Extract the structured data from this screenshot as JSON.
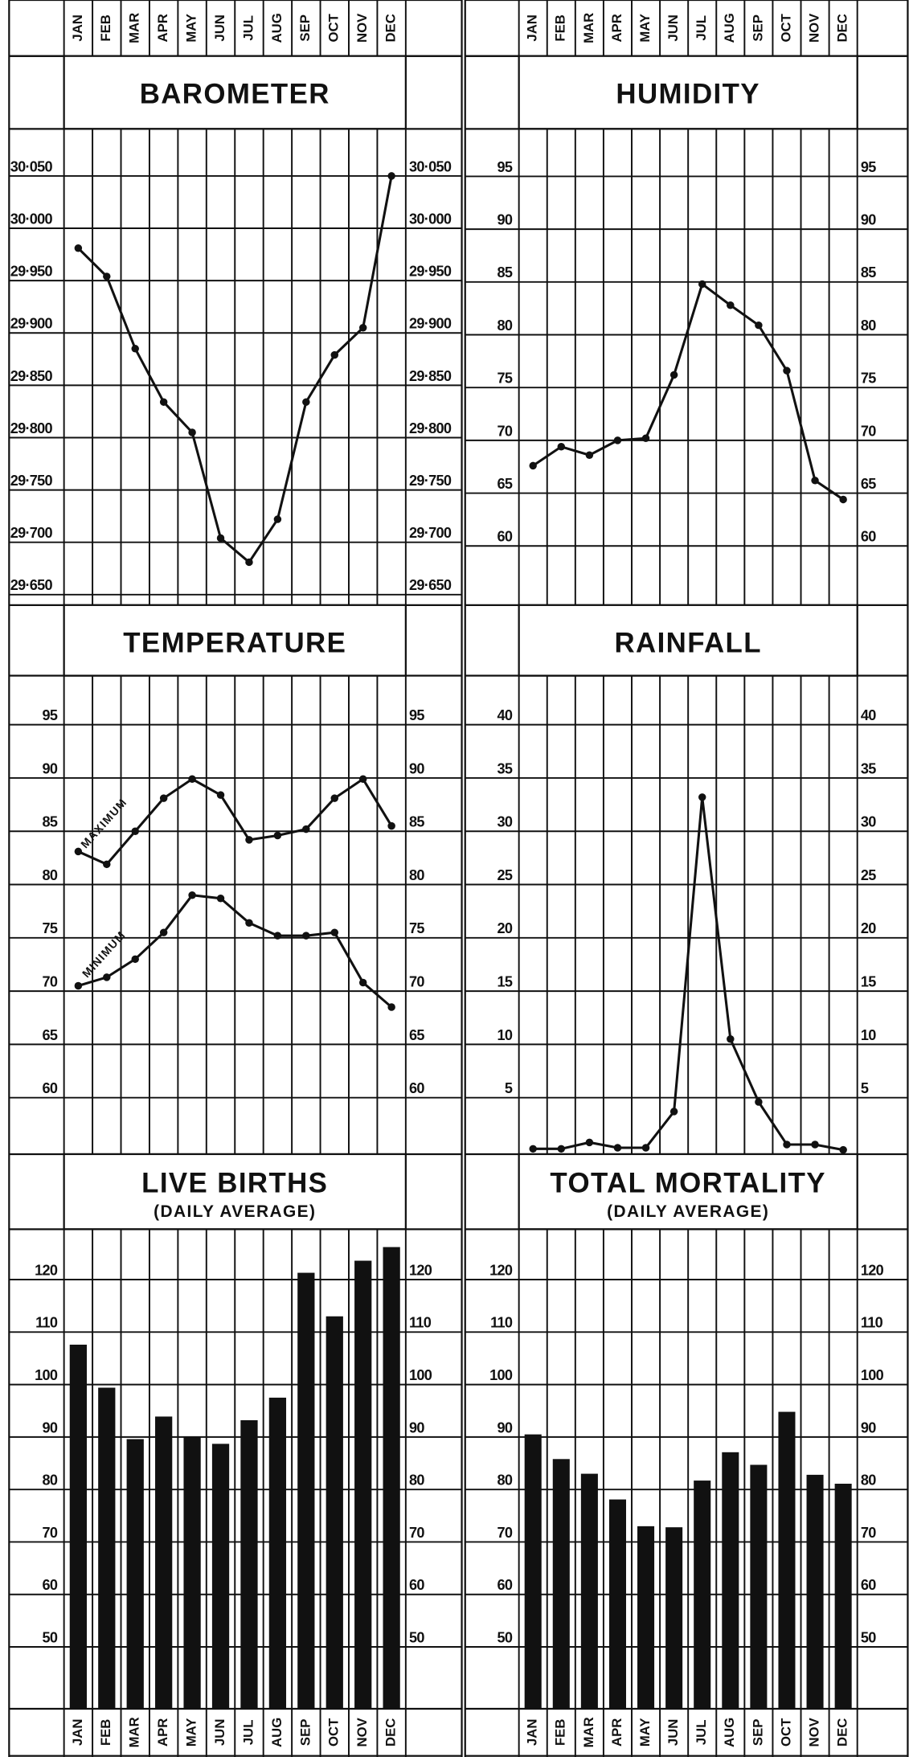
{
  "chart_data": [
    {
      "type": "line",
      "title": "BAROMETER",
      "categories": [
        "JAN",
        "FEB",
        "MAR",
        "APR",
        "MAY",
        "JUN",
        "JUL",
        "AUG",
        "SEP",
        "OCT",
        "NOV",
        "DEC"
      ],
      "values": [
        29.981,
        29.954,
        29.885,
        29.834,
        29.805,
        29.704,
        29.681,
        29.722,
        29.834,
        29.879,
        29.905,
        30.05
      ],
      "color": "#111",
      "ylim": [
        29.64,
        30.095
      ],
      "yticks": [
        {
          "value": 29.65,
          "label": "29·650"
        },
        {
          "value": 29.7,
          "label": "29·700"
        },
        {
          "value": 29.75,
          "label": "29·750"
        },
        {
          "value": 29.8,
          "label": "29·800"
        },
        {
          "value": 29.85,
          "label": "29·850"
        },
        {
          "value": 29.9,
          "label": "29·900"
        },
        {
          "value": 29.95,
          "label": "29·950"
        },
        {
          "value": 30.0,
          "label": "30·000"
        },
        {
          "value": 30.05,
          "label": "30·050"
        }
      ],
      "grid": true
    },
    {
      "type": "line",
      "title": "HUMIDITY",
      "categories": [
        "JAN",
        "FEB",
        "MAR",
        "APR",
        "MAY",
        "JUN",
        "JUL",
        "AUG",
        "SEP",
        "OCT",
        "NOV",
        "DEC"
      ],
      "values": [
        67.6,
        69.4,
        68.6,
        70.0,
        70.2,
        76.2,
        84.8,
        82.8,
        80.9,
        76.6,
        66.2,
        64.4
      ],
      "color": "#111",
      "ylim": [
        54.4,
        99.5
      ],
      "yticks": [
        60,
        65,
        70,
        75,
        80,
        85,
        90,
        95
      ],
      "grid": true
    },
    {
      "type": "line",
      "title": "TEMPERATURE",
      "series": [
        {
          "name": "MAXIMUM",
          "color": "#111",
          "values": [
            83.1,
            81.9,
            85.0,
            88.1,
            89.9,
            88.4,
            84.2,
            84.6,
            85.2,
            88.1,
            89.9,
            85.5
          ]
        },
        {
          "name": "MINIMUM",
          "color": "#111",
          "values": [
            70.5,
            71.3,
            73.0,
            75.5,
            79.0,
            78.7,
            76.4,
            75.2,
            75.2,
            75.5,
            70.8,
            68.5
          ]
        }
      ],
      "ylim": [
        54.7,
        99.6
      ],
      "yticks": [
        60,
        65,
        70,
        75,
        80,
        85,
        90,
        95
      ],
      "grid": true
    },
    {
      "type": "line",
      "title": "RAINFALL",
      "values": [
        0.2,
        0.2,
        0.8,
        0.3,
        0.3,
        3.7,
        33.2,
        10.5,
        4.6,
        0.6,
        0.6,
        0.1
      ],
      "color": "#111",
      "ylim": [
        -0.3,
        44.6
      ],
      "yticks": [
        5,
        10,
        15,
        20,
        25,
        30,
        35,
        40
      ],
      "grid": true
    },
    {
      "type": "bar",
      "title": "LIVE BIRTHS",
      "subtitle": "(DAILY AVERAGE)",
      "categories": [
        "JAN",
        "FEB",
        "MAR",
        "APR",
        "MAY",
        "JUN",
        "JUL",
        "AUG",
        "SEP",
        "OCT",
        "NOV",
        "DEC"
      ],
      "values": [
        107.6,
        99.4,
        89.6,
        93.9,
        90.0,
        88.7,
        93.2,
        97.5,
        121.3,
        113.0,
        123.6,
        126.2
      ],
      "color": "#111",
      "ylim": [
        38.2,
        129.6
      ],
      "yticks": [
        50,
        60,
        70,
        80,
        90,
        100,
        110,
        120
      ],
      "grid": true
    },
    {
      "type": "bar",
      "title": "TOTAL MORTALITY",
      "subtitle": "(DAILY AVERAGE)",
      "categories": [
        "JAN",
        "FEB",
        "MAR",
        "APR",
        "MAY",
        "JUN",
        "JUL",
        "AUG",
        "SEP",
        "OCT",
        "NOV",
        "DEC"
      ],
      "values": [
        90.5,
        85.8,
        83.0,
        78.1,
        73.0,
        72.8,
        81.7,
        87.1,
        84.7,
        94.8,
        82.8,
        81.1
      ],
      "color": "#111",
      "ylim": [
        38.2,
        129.6
      ],
      "yticks": [
        50,
        60,
        70,
        80,
        90,
        100,
        110,
        120
      ],
      "grid": true
    }
  ]
}
